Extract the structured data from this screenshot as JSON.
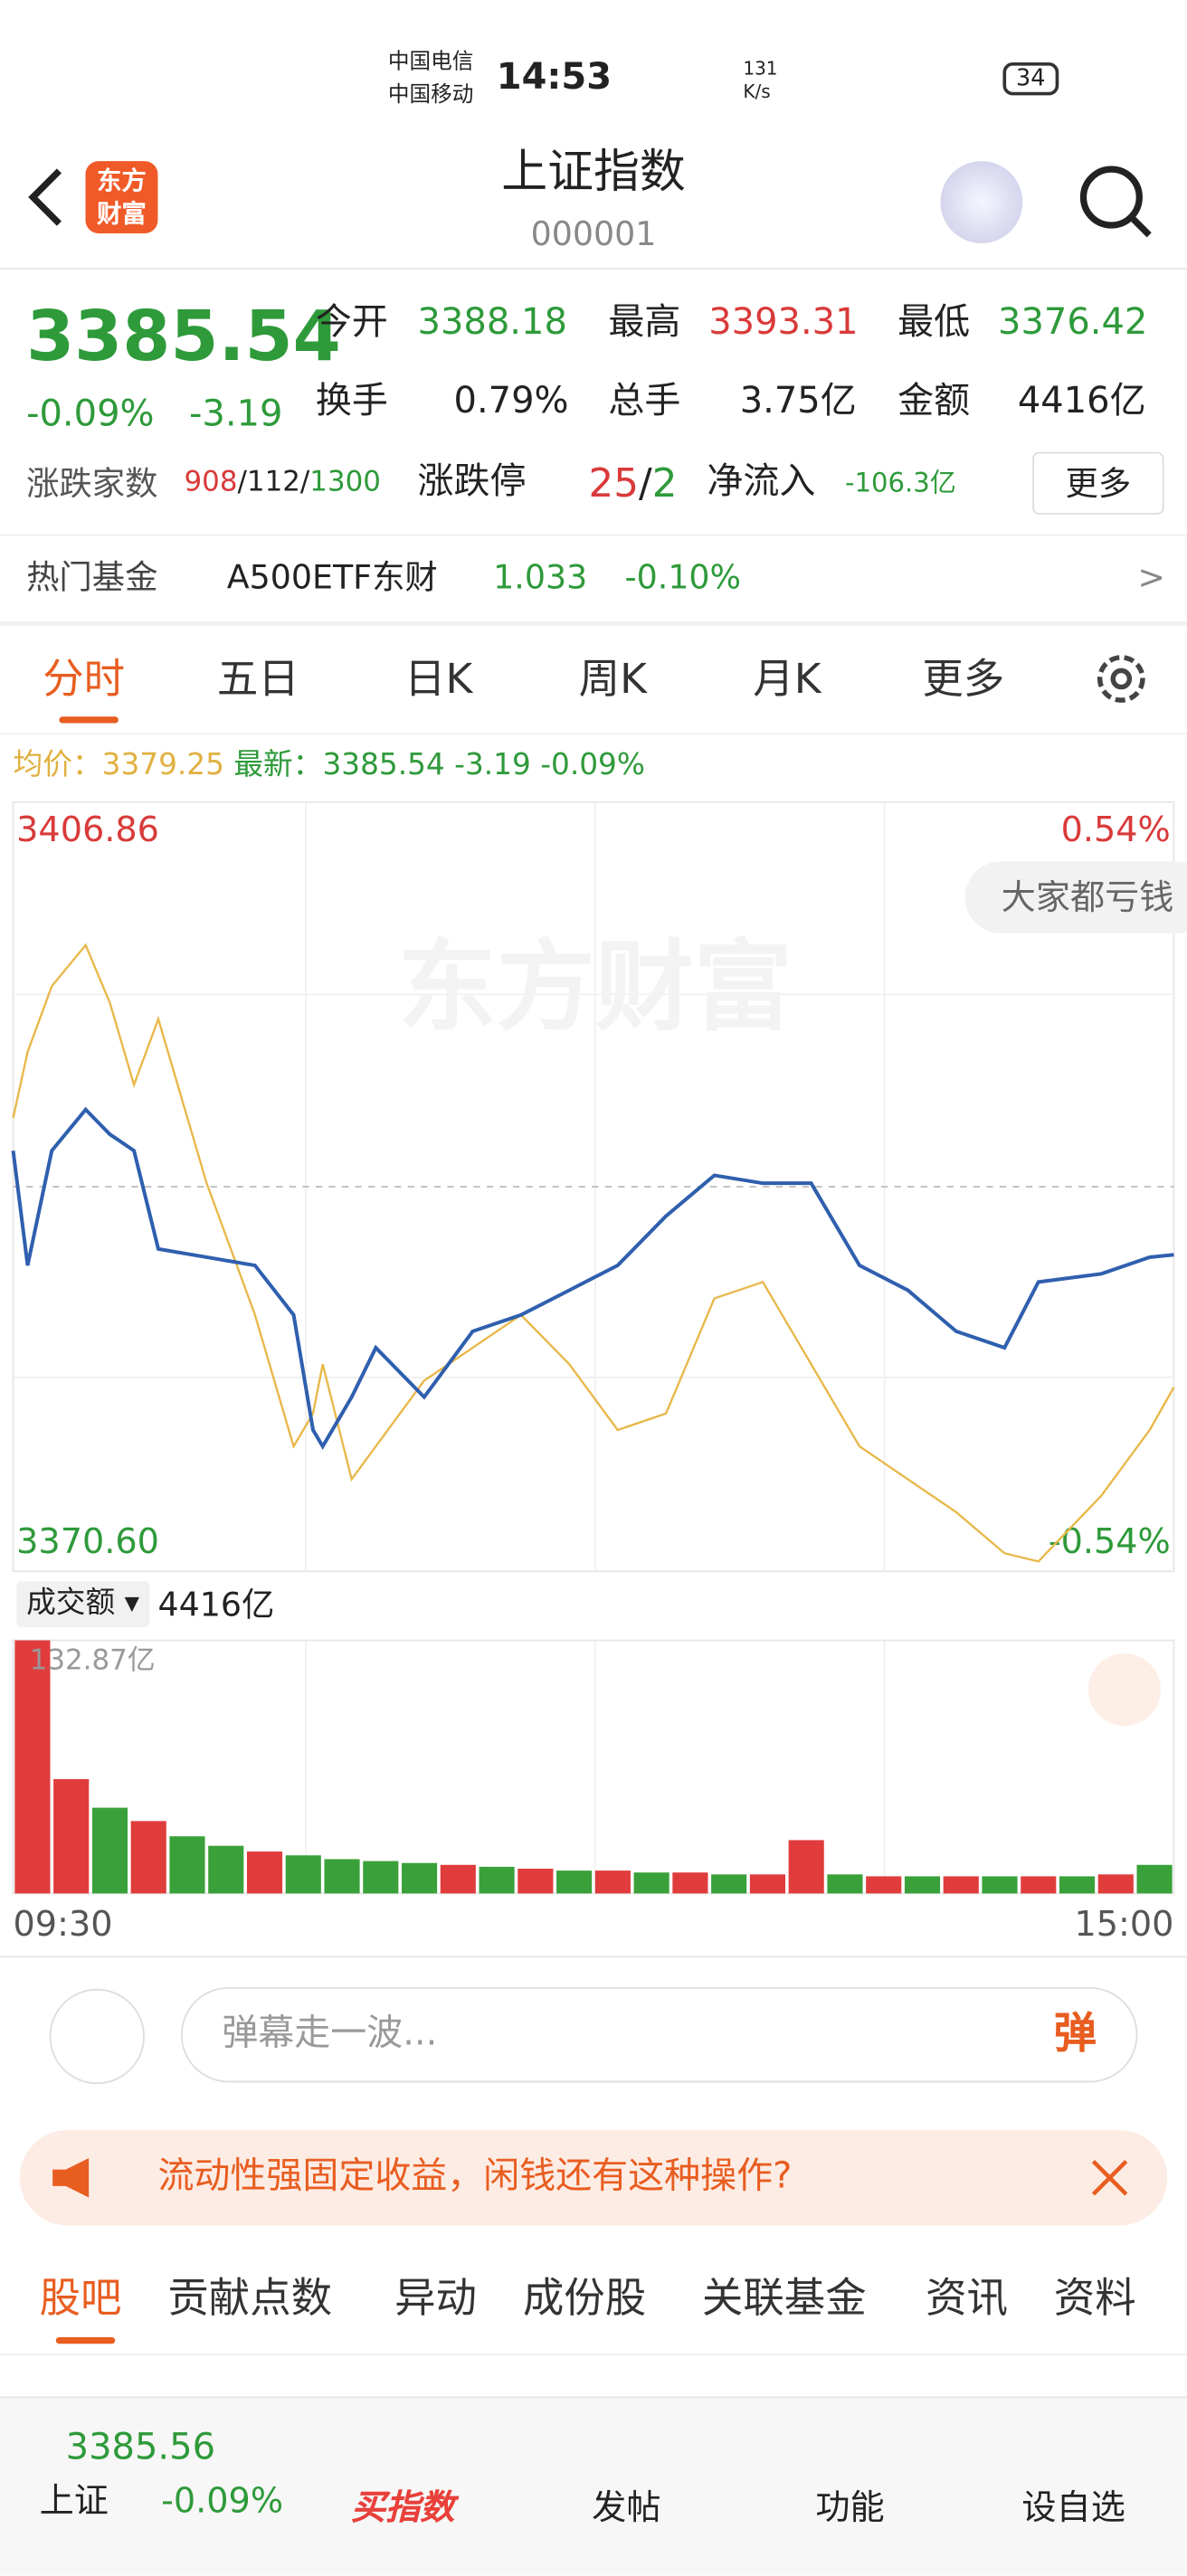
{
  "status": {
    "carrier1": "中国电信",
    "carrier2": "中国移动",
    "time": "14:53",
    "speed": "131",
    "speed_unit": "K/s",
    "battery": "34"
  },
  "header": {
    "logo": "东方财富",
    "title": "上证指数",
    "code": "000001"
  },
  "quote": {
    "price": "3385.54",
    "change_pct": "-0.09%",
    "change": "-3.19",
    "open_label": "今开",
    "open": "3388.18",
    "high_label": "最高",
    "high": "3393.31",
    "low_label": "最低",
    "low": "3376.42",
    "turnover_label": "换手",
    "turnover": "0.79%",
    "volume_label": "总手",
    "volume": "3.75亿",
    "amount_label": "金额",
    "amount": "4416亿",
    "breadth_label": "涨跌家数",
    "up": "908",
    "slash": "/",
    "flat": "112",
    "down": "1300",
    "limit_label": "涨跌停",
    "limit_up": "25",
    "limit_down": "2",
    "inflow_label": "净流入",
    "inflow": "-106.3亿",
    "more": "更多"
  },
  "fund": {
    "label": "热门基金",
    "name": "A500ETF东财",
    "price": "1.033",
    "change": "-0.10%",
    "arrow": ">"
  },
  "tabs": [
    "分时",
    "五日",
    "日K",
    "周K",
    "月K",
    "更多"
  ],
  "legend": {
    "change": "-3.19",
    "pct": "-0.09%"
  },
  "watermark": "东方财富",
  "bubble": "大家都亏钱",
  "volume_header": {
    "label": "成交额",
    "total": "4416亿"
  },
  "chart_data": [
    {
      "type": "line",
      "x": [
        0,
        3,
        8,
        15,
        20,
        25,
        30,
        40,
        50,
        58,
        62,
        64,
        70,
        75,
        85,
        95,
        105,
        115,
        125,
        135,
        145,
        155,
        165,
        175,
        185,
        195,
        205,
        212,
        225,
        235,
        240
      ],
      "series": [
        {
          "name": "最新：",
          "color": "#2f5fae",
          "values": [
            3390.48,
            3385.03,
            3390.48,
            3392.43,
            3391.26,
            3390.48,
            3385.81,
            3385.42,
            3385.03,
            3382.69,
            3377.23,
            3376.45,
            3378.79,
            3381.13,
            3378.79,
            3381.91,
            3382.69,
            3383.86,
            3385.03,
            3387.37,
            3389.31,
            3388.93,
            3388.93,
            3385.03,
            3383.86,
            3381.91,
            3381.13,
            3384.25,
            3384.64,
            3385.42,
            3385.54
          ]
        },
        {
          "name": "均价：",
          "color": "#e8b84a",
          "values": [
            3392.04,
            3395.16,
            3398.28,
            3400.23,
            3397.5,
            3393.6,
            3396.72,
            3388.93,
            3382.69,
            3376.45,
            3378.01,
            3380.35,
            3374.89,
            3376.45,
            3379.57,
            3381.13,
            3382.69,
            3380.35,
            3377.23,
            3378.01,
            3383.47,
            3384.25,
            3380.35,
            3376.45,
            3374.89,
            3373.33,
            3371.38,
            3370.99,
            3374.11,
            3377.23,
            3379.25
          ]
        }
      ],
      "xlim": [
        0,
        240
      ],
      "xticks": [
        {
          "value": 0,
          "label": "09:30"
        },
        {
          "value": 240,
          "label": "15:00"
        }
      ],
      "ylim": [
        3370.6,
        3406.86
      ],
      "yticks": [
        3406.86,
        {
          "value": 3370.6,
          "label": "3370.60"
        }
      ],
      "y2lim": [
        -0.54,
        0.54
      ],
      "y2ticks": [
        {
          "value": 0.54,
          "label": "0.54%"
        },
        {
          "value": -0.54,
          "label": "-0.54%"
        }
      ]
    },
    {
      "type": "bar",
      "values": [
        132.87,
        60,
        45,
        38,
        30,
        25,
        22,
        20,
        18,
        17,
        16,
        15,
        14,
        13,
        12,
        12,
        11,
        11,
        10,
        10,
        28,
        10,
        9,
        9,
        9,
        9,
        9,
        9,
        10,
        15
      ],
      "colors": [
        "#e03c3c",
        "#e03c3c",
        "#3aa13a",
        "#e03c3c",
        "#3aa13a",
        "#3aa13a",
        "#e03c3c",
        "#3aa13a",
        "#3aa13a",
        "#3aa13a",
        "#3aa13a",
        "#e03c3c",
        "#3aa13a",
        "#e03c3c",
        "#3aa13a",
        "#e03c3c",
        "#3aa13a",
        "#e03c3c",
        "#3aa13a",
        "#e03c3c",
        "#e03c3c",
        "#3aa13a",
        "#e03c3c",
        "#3aa13a",
        "#e03c3c",
        "#3aa13a",
        "#e03c3c",
        "#3aa13a",
        "#e03c3c",
        "#3aa13a"
      ],
      "ylim": [
        0,
        132.87
      ],
      "yticks": [
        {
          "value": 132.87,
          "label": "132.87亿"
        }
      ]
    }
  ],
  "comment": {
    "placeholder": "弹幕走一波...",
    "button": "弹"
  },
  "ad": {
    "text": "流动性强固定收益，闲钱还有这种操作?"
  },
  "sub_tabs": [
    "股吧",
    "贡献点数",
    "异动",
    "成份股",
    "关联基金",
    "资讯",
    "资料"
  ],
  "nav": {
    "index_price": "3385.56",
    "index_name": "上证",
    "index_pct": "-0.09%",
    "items": [
      "买指数",
      "发帖",
      "功能",
      "设自选"
    ]
  }
}
